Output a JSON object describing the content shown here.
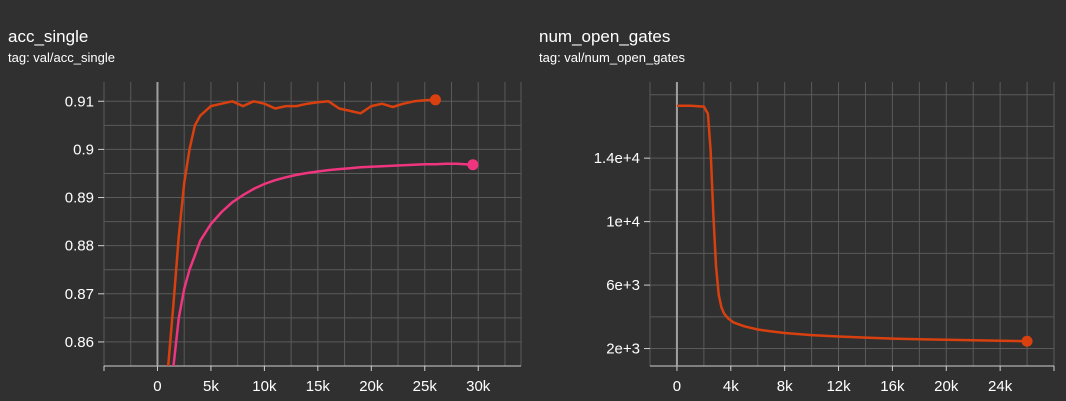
{
  "colors": {
    "background": "#303030",
    "grid": "#5a5a5a",
    "axis": "#a0a0a0",
    "series_orange": "#d9400f",
    "series_pink": "#f0357f"
  },
  "chart_data": [
    {
      "type": "line",
      "title": "acc_single",
      "subtitle": "tag: val/acc_single",
      "xlim": [
        -5000,
        34000
      ],
      "ylim": [
        0.855,
        0.914
      ],
      "x_ticks": [
        0,
        5000,
        10000,
        15000,
        20000,
        25000,
        30000
      ],
      "x_tick_labels": [
        "0",
        "5k",
        "10k",
        "15k",
        "20k",
        "25k",
        "30k"
      ],
      "y_ticks": [
        0.86,
        0.87,
        0.88,
        0.89,
        0.9,
        0.91
      ],
      "y_tick_labels": [
        "0.86",
        "0.87",
        "0.88",
        "0.89",
        "0.9",
        "0.91"
      ],
      "grid": true,
      "legend": "none",
      "series": [
        {
          "color": "#d9400f",
          "x": [
            1000,
            1500,
            2000,
            2500,
            3000,
            3500,
            4000,
            5000,
            6000,
            7000,
            8000,
            9000,
            10000,
            11000,
            12000,
            13000,
            14000,
            15000,
            16000,
            17000,
            18000,
            19000,
            20000,
            21000,
            22000,
            23000,
            24000,
            25000,
            26000
          ],
          "y": [
            0.855,
            0.868,
            0.882,
            0.893,
            0.9,
            0.905,
            0.907,
            0.909,
            0.9095,
            0.91,
            0.909,
            0.91,
            0.9095,
            0.9085,
            0.909,
            0.909,
            0.9095,
            0.9098,
            0.91,
            0.9085,
            0.908,
            0.9075,
            0.909,
            0.9095,
            0.9088,
            0.9095,
            0.91,
            0.9102,
            0.9103
          ]
        },
        {
          "color": "#f0357f",
          "x": [
            1500,
            2000,
            2500,
            3000,
            3500,
            4000,
            5000,
            6000,
            7000,
            8000,
            9000,
            10000,
            11000,
            12000,
            13000,
            14000,
            15000,
            16000,
            17000,
            18000,
            19000,
            20000,
            21000,
            22000,
            23000,
            24000,
            25000,
            26000,
            27000,
            28000,
            29500
          ],
          "y": [
            0.855,
            0.865,
            0.871,
            0.875,
            0.878,
            0.881,
            0.8845,
            0.887,
            0.889,
            0.8905,
            0.8918,
            0.8928,
            0.8936,
            0.8942,
            0.8947,
            0.8951,
            0.8954,
            0.8957,
            0.8959,
            0.8961,
            0.8963,
            0.8964,
            0.8965,
            0.8966,
            0.8967,
            0.8968,
            0.8969,
            0.8969,
            0.897,
            0.897,
            0.8968
          ]
        }
      ]
    },
    {
      "type": "line",
      "title": "num_open_gates",
      "subtitle": "tag: val/num_open_gates",
      "xlim": [
        -2000,
        28000
      ],
      "ylim": [
        900,
        18800
      ],
      "x_ticks": [
        0,
        4000,
        8000,
        12000,
        16000,
        20000,
        24000
      ],
      "x_tick_labels": [
        "0",
        "4k",
        "8k",
        "12k",
        "16k",
        "20k",
        "24k"
      ],
      "y_ticks": [
        2000,
        6000,
        10000,
        14000
      ],
      "y_tick_labels": [
        "2e+3",
        "6e+3",
        "1e+4",
        "1.4e+4"
      ],
      "grid": true,
      "legend": "none",
      "series": [
        {
          "color": "#d9400f",
          "x": [
            0,
            1000,
            2000,
            2300,
            2500,
            2700,
            2900,
            3100,
            3300,
            3500,
            3800,
            4200,
            5000,
            6000,
            7000,
            8000,
            10000,
            12000,
            14000,
            16000,
            18000,
            20000,
            22000,
            24000,
            26000
          ],
          "y": [
            17300,
            17300,
            17250,
            16800,
            14500,
            10500,
            7200,
            5400,
            4600,
            4200,
            3900,
            3650,
            3400,
            3200,
            3080,
            2980,
            2850,
            2760,
            2690,
            2630,
            2590,
            2550,
            2520,
            2490,
            2460
          ]
        }
      ]
    }
  ]
}
